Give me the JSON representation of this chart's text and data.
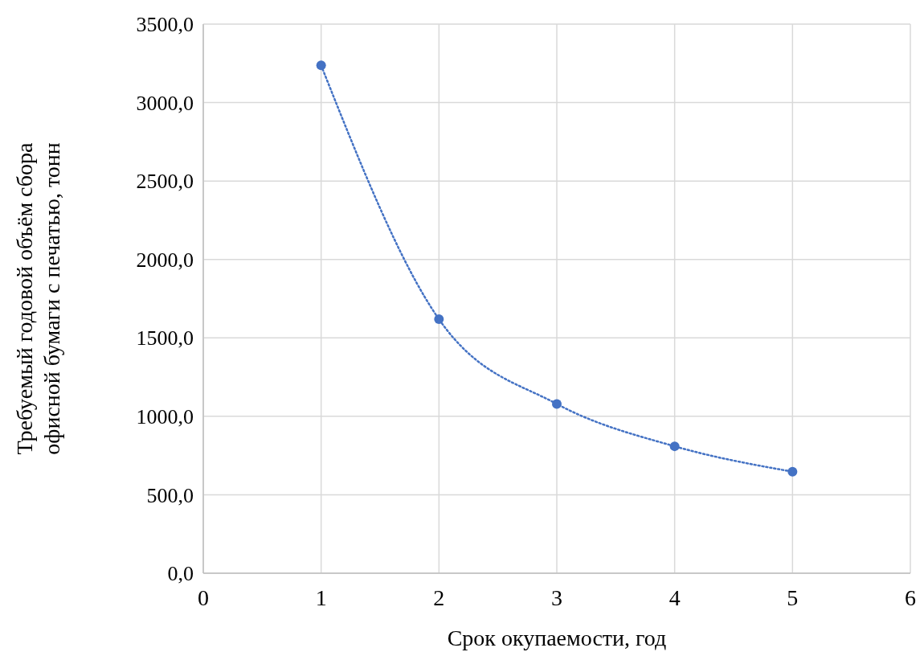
{
  "chart_data": {
    "type": "line",
    "xlabel": "Срок окупаемости, год",
    "ylabel": "Требуемый годовой объём сбора офисной бумаги с печатью, тонн",
    "x": [
      1,
      2,
      3,
      4,
      5
    ],
    "series": [
      {
        "color": "#4472c4",
        "values": [
          3237,
          1619,
          1079,
          809,
          647
        ]
      }
    ],
    "xlim": [
      0,
      6
    ],
    "xticks": [
      0,
      1,
      2,
      3,
      4,
      5,
      6
    ],
    "ylim": [
      0,
      3500
    ],
    "yticks": [
      {
        "value": 0,
        "label": "0,0"
      },
      {
        "value": 500,
        "label": "500,0"
      },
      {
        "value": 1000,
        "label": "1000,0"
      },
      {
        "value": 1500,
        "label": "1500,0"
      },
      {
        "value": 2000,
        "label": "2000,0"
      },
      {
        "value": 2500,
        "label": "2500,0"
      },
      {
        "value": 3000,
        "label": "3000,0"
      },
      {
        "value": 3500,
        "label": "3500,0"
      }
    ],
    "grid": true,
    "marker": "circle",
    "line_style": "dotted"
  }
}
